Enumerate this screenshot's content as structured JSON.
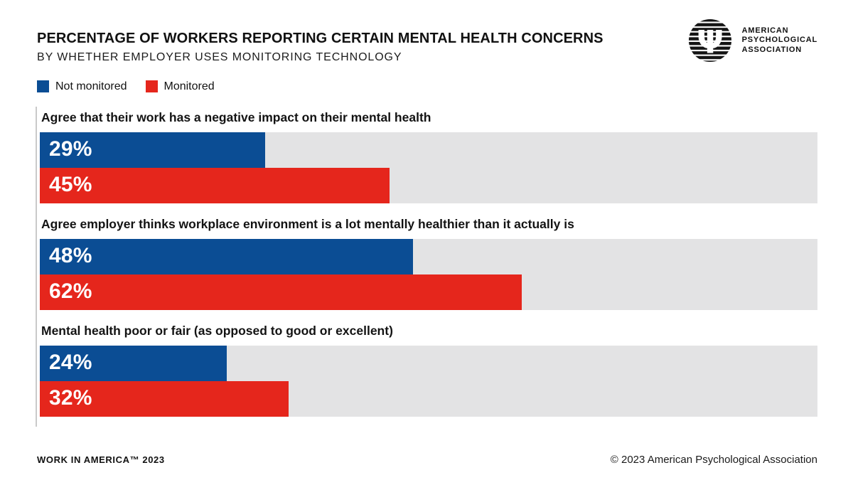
{
  "header": {
    "title": "PERCENTAGE OF WORKERS REPORTING CERTAIN MENTAL HEALTH CONCERNS",
    "subtitle": "BY WHETHER EMPLOYER USES MONITORING TECHNOLOGY"
  },
  "logo": {
    "psi_glyph": "Ψ",
    "line1": "AMERICAN",
    "line2": "PSYCHOLOGICAL",
    "line3": "ASSOCIATION"
  },
  "chart_data": {
    "type": "bar",
    "orientation": "horizontal",
    "title": "PERCENTAGE OF WORKERS REPORTING CERTAIN MENTAL HEALTH CONCERNS",
    "subtitle": "BY WHETHER EMPLOYER USES MONITORING TECHNOLOGY",
    "categories": [
      "Agree that their work has a negative impact on their mental health",
      "Agree employer thinks workplace environment is a lot mentally healthier than it actually is",
      "Mental health poor or fair (as opposed to good or excellent)"
    ],
    "series": [
      {
        "name": "Not monitored",
        "color": "#0b4d94",
        "values": [
          29,
          48,
          24
        ]
      },
      {
        "name": "Monitored",
        "color": "#e5261c",
        "values": [
          45,
          62,
          32
        ]
      }
    ],
    "value_format": "percent",
    "xlim": [
      0,
      100
    ],
    "legend_position": "top-left",
    "grid": false,
    "track_color": "#e3e3e4"
  },
  "bar_value_labels": [
    [
      "29%",
      "45%"
    ],
    [
      "48%",
      "62%"
    ],
    [
      "24%",
      "32%"
    ]
  ],
  "footer": {
    "left": "WORK IN AMERICA™ 2023",
    "right": "© 2023 American Psychological Association"
  }
}
